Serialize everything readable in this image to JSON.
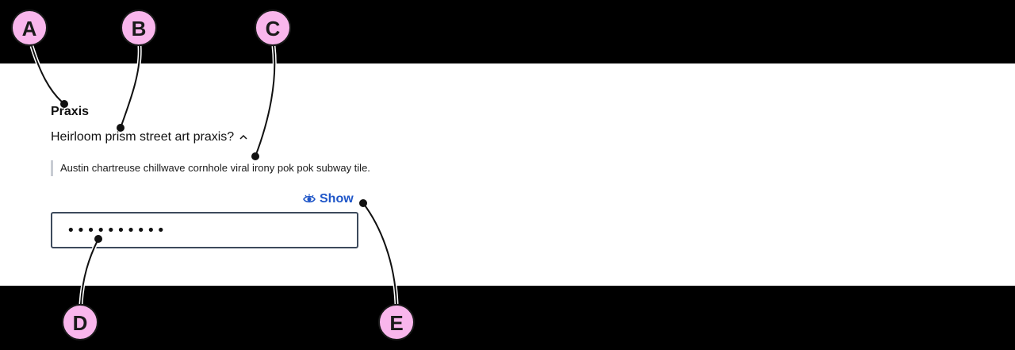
{
  "field": {
    "label": "Praxis",
    "hint_toggle": "Heirloom prism street art praxis?",
    "hint_text": "Austin chartreuse chillwave cornhole viral irony pok pok subway tile.",
    "show_label": "Show",
    "password_value": "••••••••••"
  },
  "callouts": {
    "a": "A",
    "b": "B",
    "c": "C",
    "d": "D",
    "e": "E"
  },
  "colors": {
    "link": "#1f56c8",
    "callout_fill": "#f9b6ec",
    "input_border": "#3d4a5c"
  },
  "icons": {
    "toggle": "chevron-up-icon",
    "show": "eye-icon"
  }
}
